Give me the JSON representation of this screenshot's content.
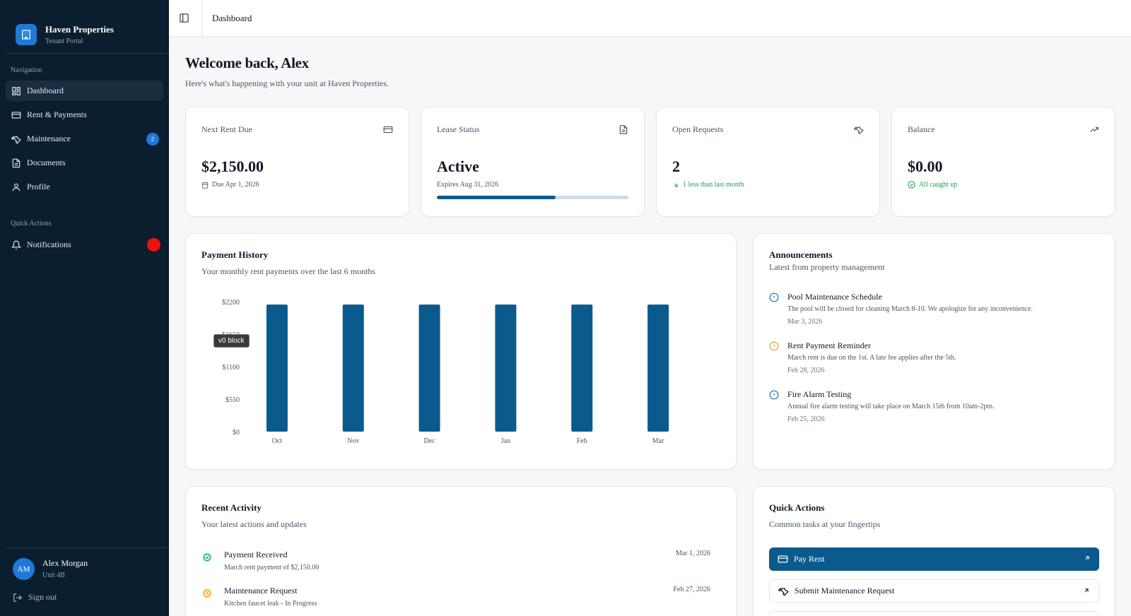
{
  "brand": {
    "name": "Haven Properties",
    "subtitle": "Tenant Portal",
    "accent": "#1e7ad6"
  },
  "sidebar": {
    "nav_heading": "Navigation",
    "items": [
      {
        "label": "Dashboard",
        "icon": "dashboard-grid-icon",
        "active": true
      },
      {
        "label": "Rent & Payments",
        "icon": "credit-card-icon"
      },
      {
        "label": "Maintenance",
        "icon": "wrench-icon",
        "badge": "2"
      },
      {
        "label": "Documents",
        "icon": "document-icon"
      },
      {
        "label": "Profile",
        "icon": "user-icon"
      }
    ],
    "quick_heading": "Quick Actions",
    "notifications": {
      "label": "Notifications",
      "icon": "bell-icon",
      "dot_color": "#ef1111"
    },
    "user": {
      "initials": "AM",
      "name": "Alex Morgan",
      "unit": "Unit 4B"
    },
    "sign_out": "Sign out"
  },
  "topbar": {
    "breadcrumb": "Dashboard"
  },
  "welcome": {
    "title": "Welcome back, Alex",
    "subtitle": "Here's what's happening with your unit at Haven Properties."
  },
  "stats": {
    "rent": {
      "label": "Next Rent Due",
      "value": "$2,150.00",
      "sub": "Due Apr 1, 2026"
    },
    "lease": {
      "label": "Lease Status",
      "value": "Active",
      "sub": "Expires Aug 31, 2026",
      "progress": 0.62
    },
    "requests": {
      "label": "Open Requests",
      "value": "2",
      "sub": "1 less than last month"
    },
    "balance": {
      "label": "Balance",
      "value": "$0.00",
      "sub": "All caught up"
    }
  },
  "payment_history": {
    "title": "Payment History",
    "subtitle": "Your monthly rent payments over the last 6 months",
    "tooltip": "v0 block"
  },
  "chart_data": {
    "type": "bar",
    "categories": [
      "Oct",
      "Nov",
      "Dec",
      "Jan",
      "Feb",
      "Mar"
    ],
    "values": [
      2150,
      2150,
      2150,
      2150,
      2150,
      2150
    ],
    "yticks": [
      "$0",
      "$550",
      "$1100",
      "$1650",
      "$2200"
    ],
    "ylim": [
      0,
      2200
    ],
    "color": "#0a5a8e",
    "grid": false
  },
  "announcements": {
    "title": "Announcements",
    "subtitle": "Latest from property management",
    "items": [
      {
        "title": "Pool Maintenance Schedule",
        "text": "The pool will be closed for cleaning March 8-10. We apologize for any inconvenience.",
        "date": "Mar 3, 2026",
        "icon": "info-circle-icon",
        "color": "#1d6fb8"
      },
      {
        "title": "Rent Payment Reminder",
        "text": "March rent is due on the 1st. A late fee applies after the 5th.",
        "date": "Feb 28, 2026",
        "icon": "alert-circle-icon",
        "color": "#e0a02c"
      },
      {
        "title": "Fire Alarm Testing",
        "text": "Annual fire alarm testing will take place on March 15th from 10am-2pm.",
        "date": "Feb 25, 2026",
        "icon": "info-circle-icon",
        "color": "#1d6fb8"
      }
    ]
  },
  "recent_activity": {
    "title": "Recent Activity",
    "subtitle": "Your latest actions and updates",
    "items": [
      {
        "title": "Payment Received",
        "text": "March rent payment of $2,150.00",
        "date": "Mar 1, 2026",
        "icon": "check-circle-icon"
      },
      {
        "title": "Maintenance Request",
        "text": "Kitchen faucet leak - In Progress",
        "date": "Feb 27, 2026",
        "icon": "clock-icon"
      }
    ]
  },
  "quick_actions": {
    "title": "Quick Actions",
    "subtitle": "Common tasks at your fingertips",
    "buttons": [
      {
        "label": "Pay Rent",
        "icon": "credit-card-icon"
      },
      {
        "label": "Submit Maintenance Request",
        "icon": "wrench-icon"
      }
    ]
  }
}
